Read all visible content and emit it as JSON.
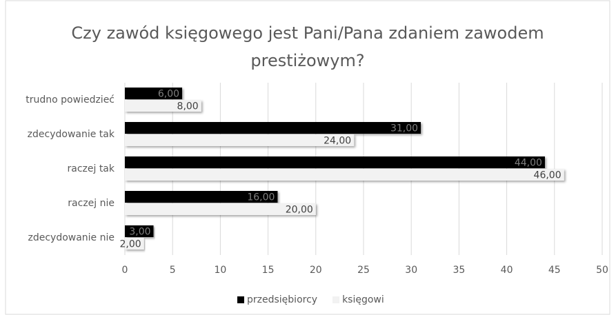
{
  "chart_data": {
    "type": "hbar",
    "title": "Czy zawód księgowego jest Pani/Pana zdaniem zawodem prestiżowym?",
    "categories": [
      "trudno powiedzieć",
      "zdecydowanie tak",
      "raczej tak",
      "raczej nie",
      "zdecydowanie nie"
    ],
    "series": [
      {
        "name": "przedsiębiorcy",
        "color": "#000000",
        "values": [
          6,
          31,
          44,
          16,
          3
        ],
        "value_labels": [
          "6,00",
          "31,00",
          "44,00",
          "16,00",
          "3,00"
        ]
      },
      {
        "name": "księgowi",
        "color": "#f2f2f2",
        "values": [
          8,
          24,
          46,
          20,
          2
        ],
        "value_labels": [
          "8,00",
          "24,00",
          "46,00",
          "20,00",
          "2,00"
        ]
      }
    ],
    "xlim": [
      0,
      50
    ],
    "xticks": [
      0,
      5,
      10,
      15,
      20,
      25,
      30,
      35,
      40,
      45,
      50
    ],
    "grid": true,
    "legend": "bottom"
  }
}
